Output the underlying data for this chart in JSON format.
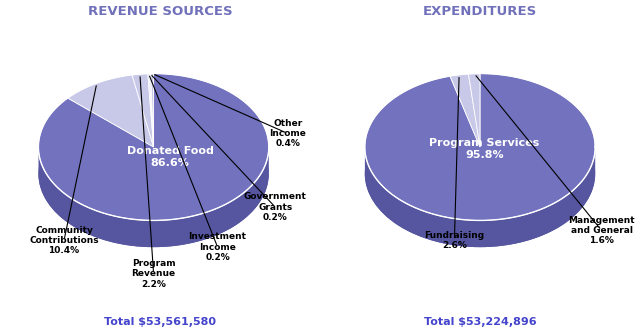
{
  "background_color": "#ffffff",
  "title_color": "#7070bb",
  "total_color": "#4444cc",
  "pie_face_color": "#7272bf",
  "pie_side_color": "#5555a0",
  "pie_light_slice_color": "#c8c8e8",
  "pie_light_slice_side_color": "#9898c8",
  "chart1": {
    "title": "REVENUE SOURCES",
    "total": "Total $53,561,580",
    "slices": [
      {
        "label": "Donated Food\n86.6%",
        "pct": 86.6,
        "is_large": true
      },
      {
        "label": "Community\nContributions\n10.4%",
        "pct": 10.4,
        "is_large": false
      },
      {
        "label": "Program\nRevenue\n2.2%",
        "pct": 2.2,
        "is_large": false
      },
      {
        "label": "Investment\nIncome\n0.2%",
        "pct": 0.2,
        "is_large": false
      },
      {
        "label": "Government\nGrants\n0.2%",
        "pct": 0.2,
        "is_large": false
      },
      {
        "label": "Other\nIncome\n0.4%",
        "pct": 0.4,
        "is_large": false
      }
    ]
  },
  "chart2": {
    "title": "EXPENDITURES",
    "total": "Total $53,224,896",
    "slices": [
      {
        "label": "Program Services\n95.8%",
        "pct": 95.8,
        "is_large": true
      },
      {
        "label": "Fundraising\n2.6%",
        "pct": 2.6,
        "is_large": false
      },
      {
        "label": "Management\nand General\n1.6%",
        "pct": 1.6,
        "is_large": false
      }
    ]
  }
}
